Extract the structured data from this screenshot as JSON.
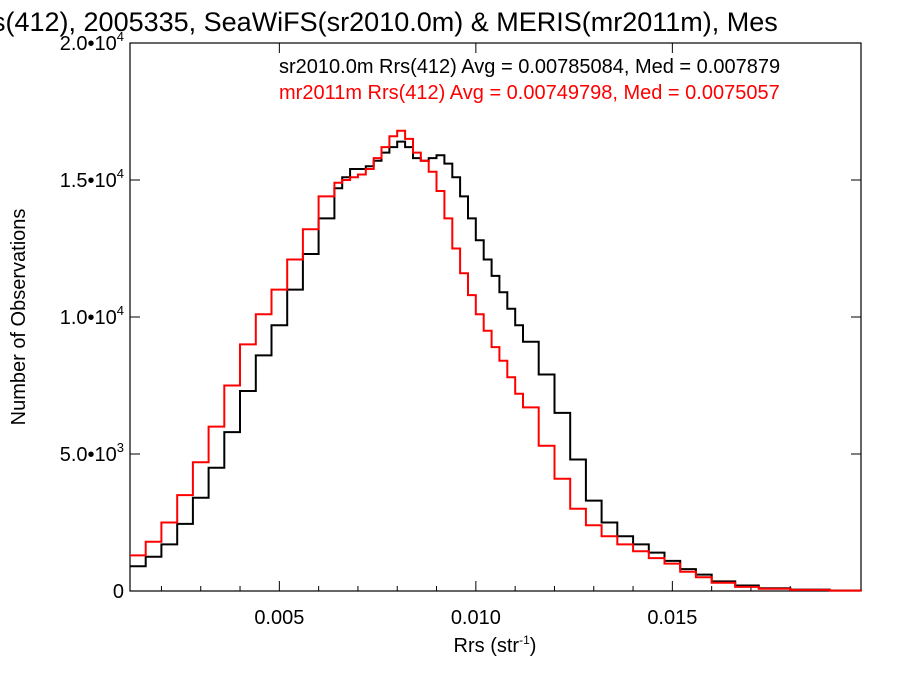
{
  "chart_data": {
    "type": "line",
    "title": "s(412), 2005335, SeaWiFS(sr2010.0m) & MERIS(mr2011m), Mes",
    "xlabel": "Rrs (str",
    "xlabel_sup": "-1",
    "xlabel_end": ")",
    "ylabel": "Number of Observations",
    "xlim": [
      0.0012,
      0.0198
    ],
    "ylim": [
      0,
      20000
    ],
    "grid": false,
    "x_ticks": [
      {
        "value": 0.005,
        "label": "0.005"
      },
      {
        "value": 0.01,
        "label": "0.010"
      },
      {
        "value": 0.015,
        "label": "0.015"
      }
    ],
    "y_ticks": [
      {
        "value": 0,
        "label": "0",
        "exp": ""
      },
      {
        "value": 5000,
        "label": "5.0•10",
        "exp": "3"
      },
      {
        "value": 10000,
        "label": "1.0•10",
        "exp": "4"
      },
      {
        "value": 15000,
        "label": "1.5•10",
        "exp": "4"
      },
      {
        "value": 20000,
        "label": "2.0•10",
        "exp": "4"
      }
    ],
    "annotations": [
      {
        "text": "sr2010.0m Rrs(412) Avg = 0.00785084, Med = 0.007879",
        "color": "#000000"
      },
      {
        "text": "mr2011m Rrs(412) Avg = 0.00749798, Med = 0.0075057",
        "color": "#ff0000"
      }
    ],
    "series": [
      {
        "color": "#000000",
        "x": [
          0.0012,
          0.0016,
          0.002,
          0.0024,
          0.0028,
          0.0032,
          0.0036,
          0.004,
          0.0044,
          0.0048,
          0.0052,
          0.0056,
          0.006,
          0.0064,
          0.0066,
          0.0068,
          0.007,
          0.0072,
          0.0074,
          0.0076,
          0.0078,
          0.008,
          0.0082,
          0.0084,
          0.0086,
          0.0088,
          0.009,
          0.0092,
          0.0094,
          0.0096,
          0.0098,
          0.01,
          0.0102,
          0.0104,
          0.0106,
          0.0108,
          0.011,
          0.0112,
          0.0116,
          0.012,
          0.0124,
          0.0128,
          0.0132,
          0.0136,
          0.014,
          0.0144,
          0.0148,
          0.0152,
          0.0156,
          0.016,
          0.0166,
          0.0172,
          0.018,
          0.019,
          0.0198
        ],
        "y": [
          900,
          1250,
          1700,
          2450,
          3400,
          4500,
          5800,
          7300,
          8600,
          9700,
          11000,
          12300,
          13600,
          14700,
          15100,
          15400,
          15400,
          15500,
          15700,
          16000,
          16200,
          16400,
          16200,
          15800,
          15700,
          15800,
          15900,
          15600,
          15100,
          14400,
          13600,
          12800,
          12100,
          11500,
          10900,
          10300,
          9700,
          9100,
          7900,
          6500,
          4800,
          3300,
          2500,
          2000,
          1700,
          1400,
          1100,
          800,
          600,
          350,
          200,
          100,
          50,
          20,
          0
        ]
      },
      {
        "color": "#ff0000",
        "x": [
          0.0012,
          0.0016,
          0.002,
          0.0024,
          0.0028,
          0.0032,
          0.0036,
          0.004,
          0.0044,
          0.0048,
          0.0052,
          0.0056,
          0.006,
          0.0064,
          0.0066,
          0.0068,
          0.007,
          0.0072,
          0.0074,
          0.0076,
          0.0078,
          0.008,
          0.0082,
          0.0084,
          0.0086,
          0.0088,
          0.009,
          0.0092,
          0.0094,
          0.0096,
          0.0098,
          0.01,
          0.0102,
          0.0104,
          0.0106,
          0.0108,
          0.011,
          0.0112,
          0.0116,
          0.012,
          0.0124,
          0.0128,
          0.0132,
          0.0136,
          0.014,
          0.0144,
          0.0148,
          0.0152,
          0.0156,
          0.016,
          0.0166,
          0.0172,
          0.018,
          0.019,
          0.0198
        ],
        "y": [
          1300,
          1800,
          2500,
          3500,
          4700,
          6000,
          7500,
          9000,
          10100,
          11000,
          12100,
          13200,
          14400,
          14900,
          15000,
          15100,
          15200,
          15400,
          15800,
          16200,
          16600,
          16800,
          16500,
          16000,
          15700,
          15300,
          14600,
          13600,
          12500,
          11600,
          10800,
          10100,
          9500,
          8900,
          8400,
          7800,
          7200,
          6700,
          5300,
          4100,
          3000,
          2400,
          2000,
          1700,
          1450,
          1200,
          1000,
          700,
          500,
          300,
          150,
          80,
          40,
          15,
          0
        ]
      }
    ]
  }
}
